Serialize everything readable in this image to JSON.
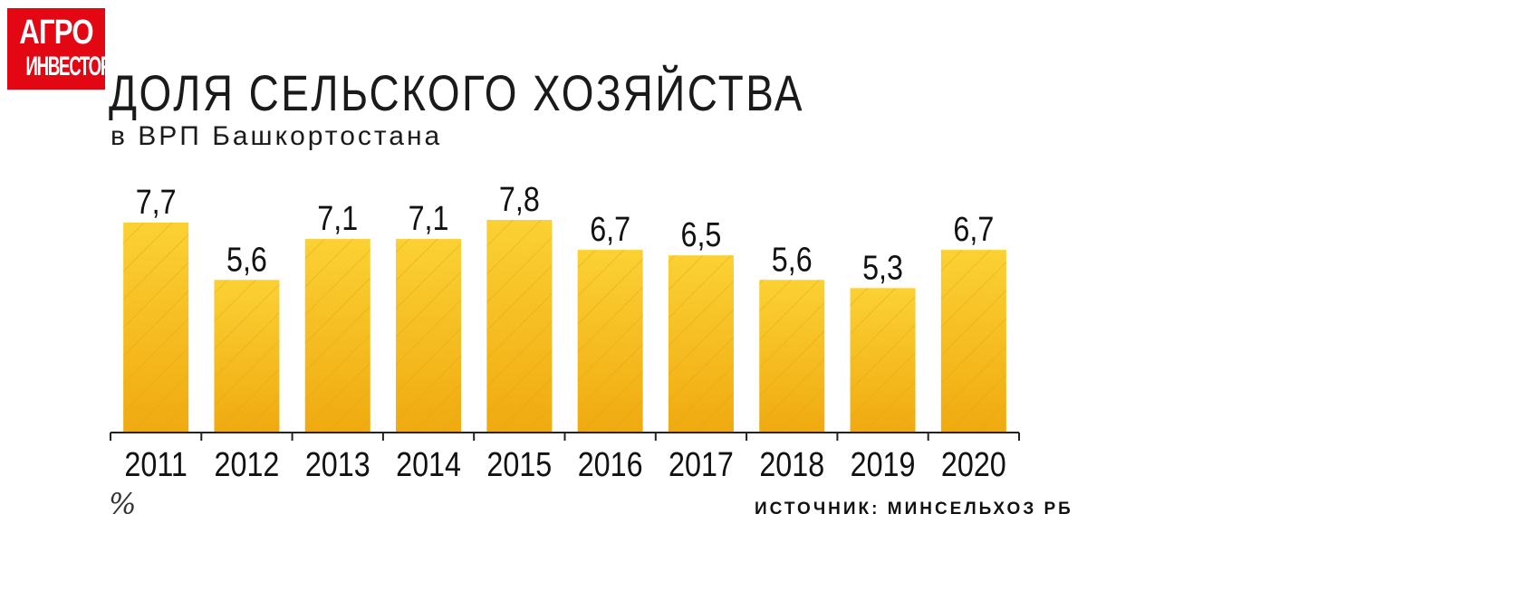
{
  "logo": {
    "line1": "АГРО",
    "line2": "ИНВЕСТОР"
  },
  "header": {
    "title": "ДОЛЯ СЕЛЬСКОГО ХОЗЯЙСТВА",
    "subtitle": "в ВРП Башкортостана"
  },
  "footer": {
    "unit": "%",
    "source": "ИСТОЧНИК: МИНСЕЛЬХОЗ РБ"
  },
  "chart_data": {
    "type": "bar",
    "title": "ДОЛЯ СЕЛЬСКОГО ХОЗЯЙСТВА",
    "subtitle": "в ВРП Башкортостана",
    "xlabel": "",
    "ylabel": "%",
    "categories": [
      "2011",
      "2012",
      "2013",
      "2014",
      "2015",
      "2016",
      "2017",
      "2018",
      "2019",
      "2020"
    ],
    "values": [
      7.7,
      5.6,
      7.1,
      7.1,
      7.8,
      6.7,
      6.5,
      5.6,
      5.3,
      6.7
    ],
    "value_labels": [
      "7,7",
      "5,6",
      "7,1",
      "7,1",
      "7,8",
      "6,7",
      "6,5",
      "5,6",
      "5,3",
      "6,7"
    ],
    "ylim": [
      0,
      7.8
    ],
    "grid": false,
    "legend": "none",
    "colors": {
      "bar_top": "#fbd134",
      "bar_bottom": "#f0aa10",
      "hatch": "#e2a312",
      "axis": "#222222"
    }
  }
}
